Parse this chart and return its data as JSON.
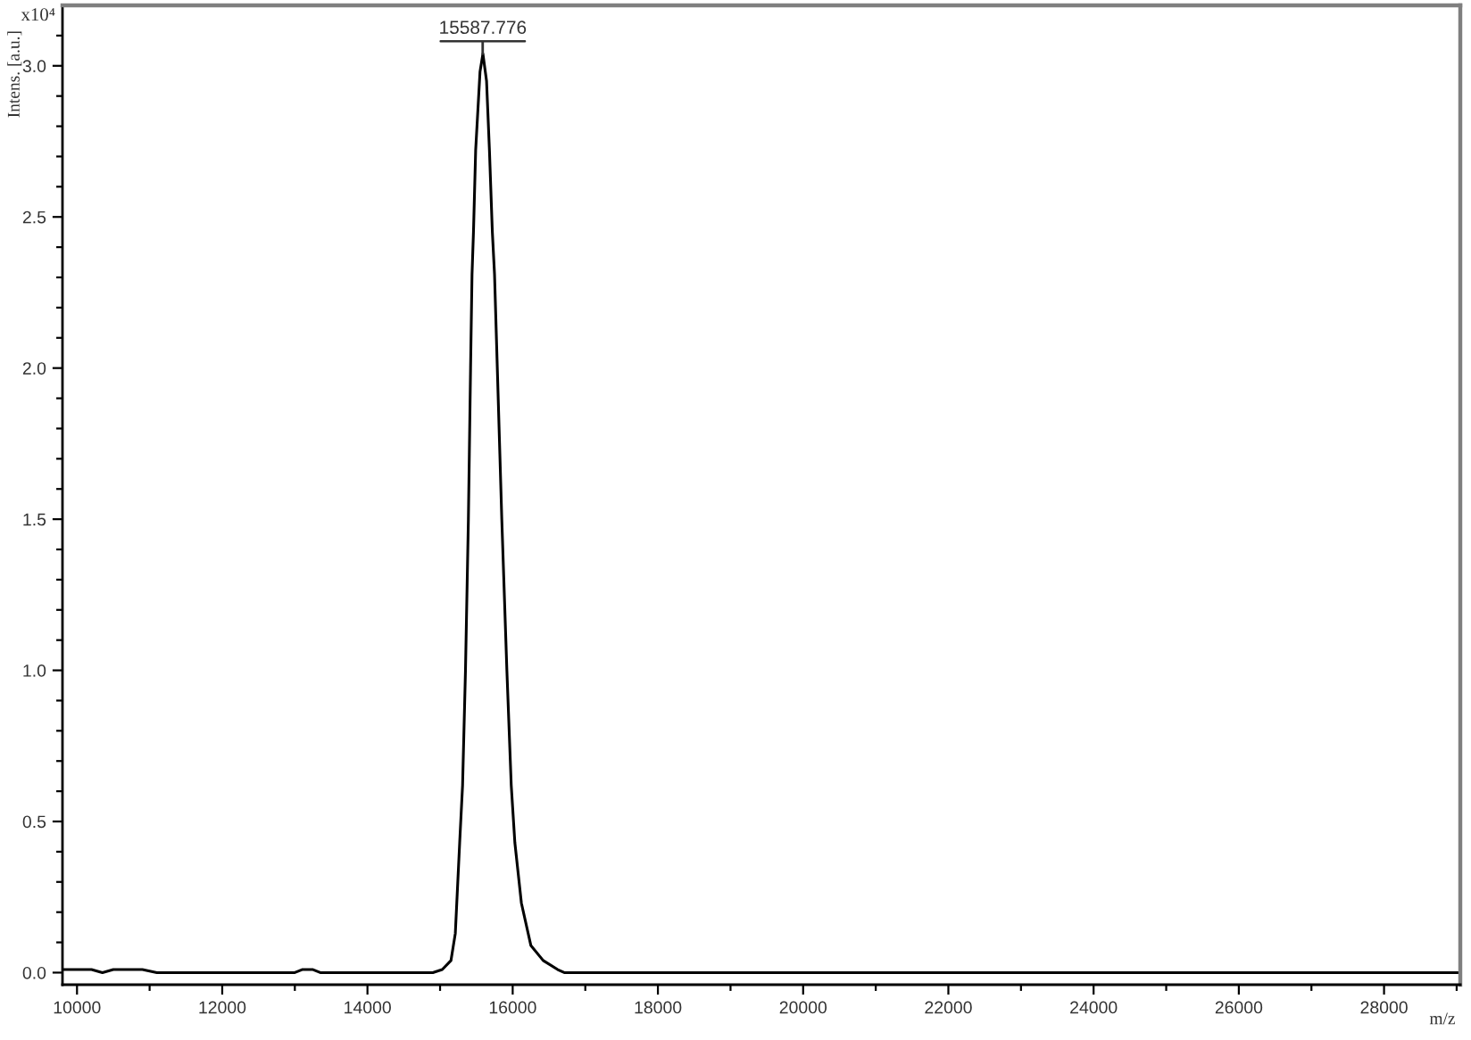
{
  "chart_data": {
    "type": "line",
    "xlabel": "m/z",
    "ylabel": "Intens. [a.u.]",
    "color": "#000000",
    "x": [
      9800,
      10000,
      10200,
      10350,
      10500,
      10900,
      11100,
      12000,
      13000,
      13100,
      13250,
      13350,
      14000,
      14600,
      14900,
      15030,
      15150,
      15210,
      15270,
      15310,
      15350,
      15390,
      15420,
      15440,
      15460,
      15490,
      15550,
      15590,
      15640,
      15680,
      15720,
      15750,
      15850,
      15920,
      15980,
      16030,
      16120,
      16250,
      16420,
      16620,
      16710,
      18000,
      20000,
      24000,
      29050
    ],
    "values": [
      0.01,
      0.01,
      0.01,
      0.0,
      0.01,
      0.01,
      0.0,
      0.0,
      0.0,
      0.01,
      0.01,
      0.0,
      0.0,
      0.0,
      0.0,
      0.01,
      0.04,
      0.13,
      0.43,
      0.62,
      1.0,
      1.5,
      2.0,
      2.31,
      2.45,
      2.72,
      2.98,
      3.04,
      2.95,
      2.72,
      2.45,
      2.31,
      1.5,
      1.0,
      0.62,
      0.43,
      0.23,
      0.09,
      0.04,
      0.01,
      0.0,
      0.0,
      0.0,
      0.0,
      0.0
    ],
    "xlim": [
      9800,
      29050
    ],
    "ylim": [
      -0.04,
      3.2
    ],
    "xticks": [
      10000,
      {
        "value": 11000,
        "label": null
      },
      12000,
      {
        "value": 13000,
        "label": null
      },
      14000,
      {
        "value": 15000,
        "label": null
      },
      16000,
      {
        "value": 17000,
        "label": null
      },
      18000,
      {
        "value": 19000,
        "label": null
      },
      20000,
      {
        "value": 21000,
        "label": null
      },
      22000,
      {
        "value": 23000,
        "label": null
      },
      24000,
      {
        "value": 25000,
        "label": null
      },
      26000,
      {
        "value": 27000,
        "label": null
      },
      28000,
      {
        "value": 29000,
        "label": null
      }
    ],
    "yticks": [
      {
        "value": 0,
        "label": "0.0"
      },
      {
        "value": 0.1,
        "label": null
      },
      {
        "value": 0.2,
        "label": null
      },
      {
        "value": 0.3,
        "label": null
      },
      {
        "value": 0.4,
        "label": null
      },
      {
        "value": 0.5,
        "label": "0.5"
      },
      {
        "value": 0.6,
        "label": null
      },
      {
        "value": 0.7,
        "label": null
      },
      {
        "value": 0.8,
        "label": null
      },
      {
        "value": 0.9,
        "label": null
      },
      {
        "value": 1,
        "label": "1.0"
      },
      {
        "value": 1.1,
        "label": null
      },
      {
        "value": 1.2,
        "label": null
      },
      {
        "value": 1.3,
        "label": null
      },
      {
        "value": 1.4,
        "label": null
      },
      {
        "value": 1.5,
        "label": "1.5"
      },
      {
        "value": 1.6,
        "label": null
      },
      {
        "value": 1.7,
        "label": null
      },
      {
        "value": 1.8,
        "label": null
      },
      {
        "value": 1.9,
        "label": null
      },
      {
        "value": 2,
        "label": "2.0"
      },
      {
        "value": 2.1,
        "label": null
      },
      {
        "value": 2.2,
        "label": null
      },
      {
        "value": 2.3,
        "label": null
      },
      {
        "value": 2.4,
        "label": null
      },
      {
        "value": 2.5,
        "label": "2.5"
      },
      {
        "value": 2.6,
        "label": null
      },
      {
        "value": 2.7,
        "label": null
      },
      {
        "value": 2.8,
        "label": null
      },
      {
        "value": 2.9,
        "label": null
      },
      {
        "value": 3,
        "label": "3.0"
      },
      {
        "value": 3.1,
        "label": null
      }
    ],
    "annotations": [
      "x10⁴",
      {
        "text": "15587.776",
        "x": 15587.776,
        "y": 3.04
      }
    ]
  }
}
